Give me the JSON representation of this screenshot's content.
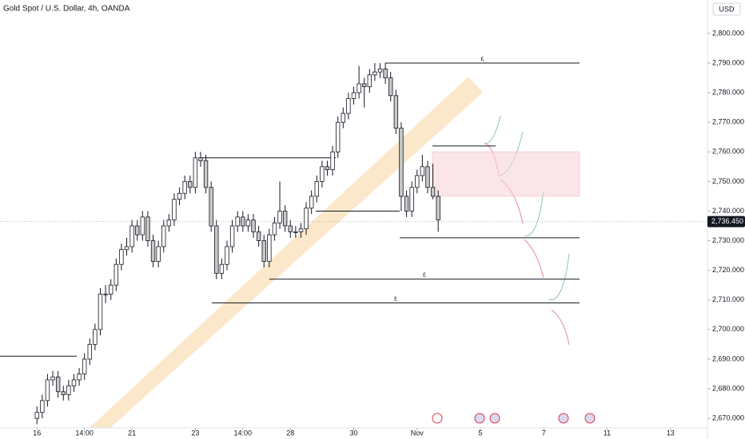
{
  "chart_data": {
    "type": "candlestick",
    "title": "Gold Spot / U.S. Dollar, 4h, OANDA",
    "currency": "USD",
    "candles": [
      [
        2670,
        2674,
        2668,
        2672
      ],
      [
        2672,
        2678,
        2670,
        2676
      ],
      [
        2676,
        2685,
        2674,
        2683
      ],
      [
        2683,
        2686,
        2681,
        2684
      ],
      [
        2684,
        2686,
        2677,
        2679
      ],
      [
        2679,
        2681,
        2676,
        2678
      ],
      [
        2678,
        2683,
        2676,
        2681
      ],
      [
        2681,
        2685,
        2679,
        2683
      ],
      [
        2683,
        2687,
        2681,
        2685
      ],
      [
        2685,
        2692,
        2683,
        2690
      ],
      [
        2690,
        2697,
        2688,
        2695
      ],
      [
        2695,
        2702,
        2693,
        2700
      ],
      [
        2700,
        2714,
        2698,
        2712
      ],
      [
        2712,
        2715,
        2709,
        2712
      ],
      [
        2712,
        2717,
        2710,
        2715
      ],
      [
        2715,
        2724,
        2713,
        2722
      ],
      [
        2722,
        2729,
        2720,
        2727
      ],
      [
        2727,
        2731,
        2725,
        2728
      ],
      [
        2728,
        2737,
        2726,
        2735
      ],
      [
        2735,
        2737,
        2730,
        2732
      ],
      [
        2732,
        2740,
        2730,
        2738
      ],
      [
        2738,
        2740,
        2728,
        2730
      ],
      [
        2730,
        2732,
        2721,
        2723
      ],
      [
        2723,
        2730,
        2721,
        2728
      ],
      [
        2728,
        2737,
        2726,
        2735
      ],
      [
        2735,
        2739,
        2733,
        2737
      ],
      [
        2737,
        2746,
        2735,
        2744
      ],
      [
        2744,
        2748,
        2742,
        2746
      ],
      [
        2746,
        2752,
        2744,
        2750
      ],
      [
        2750,
        2752,
        2746,
        2748
      ],
      [
        2748,
        2760,
        2746,
        2758
      ],
      [
        2758,
        2760,
        2755,
        2757
      ],
      [
        2757,
        2759,
        2746,
        2748
      ],
      [
        2748,
        2750,
        2733,
        2735
      ],
      [
        2735,
        2737,
        2717,
        2719
      ],
      [
        2719,
        2724,
        2717,
        2722
      ],
      [
        2722,
        2730,
        2720,
        2728
      ],
      [
        2728,
        2737,
        2726,
        2735
      ],
      [
        2735,
        2740,
        2733,
        2738
      ],
      [
        2738,
        2740,
        2733,
        2735
      ],
      [
        2735,
        2739,
        2733,
        2737
      ],
      [
        2737,
        2739,
        2731,
        2733
      ],
      [
        2733,
        2735,
        2728,
        2730
      ],
      [
        2730,
        2732,
        2721,
        2723
      ],
      [
        2723,
        2734,
        2721,
        2732
      ],
      [
        2732,
        2738,
        2730,
        2736
      ],
      [
        2736,
        2750,
        2734,
        2740
      ],
      [
        2740,
        2742,
        2733,
        2735
      ],
      [
        2735,
        2737,
        2731,
        2733
      ],
      [
        2733,
        2735,
        2731,
        2733
      ],
      [
        2733,
        2736,
        2731,
        2734
      ],
      [
        2734,
        2743,
        2732,
        2741
      ],
      [
        2741,
        2747,
        2739,
        2745
      ],
      [
        2745,
        2752,
        2743,
        2750
      ],
      [
        2750,
        2757,
        2748,
        2755
      ],
      [
        2755,
        2757,
        2752,
        2754
      ],
      [
        2754,
        2762,
        2752,
        2760
      ],
      [
        2760,
        2772,
        2758,
        2770
      ],
      [
        2770,
        2775,
        2768,
        2773
      ],
      [
        2773,
        2780,
        2771,
        2778
      ],
      [
        2778,
        2782,
        2776,
        2780
      ],
      [
        2780,
        2789,
        2778,
        2783
      ],
      [
        2783,
        2785,
        2775,
        2782
      ],
      [
        2782,
        2788,
        2780,
        2786
      ],
      [
        2786,
        2790,
        2784,
        2787
      ],
      [
        2787,
        2790,
        2785,
        2788
      ],
      [
        2788,
        2790,
        2783,
        2785
      ],
      [
        2785,
        2787,
        2777,
        2779
      ],
      [
        2779,
        2781,
        2766,
        2768
      ],
      [
        2768,
        2770,
        2740,
        2745
      ],
      [
        2745,
        2747,
        2738,
        2740
      ],
      [
        2740,
        2750,
        2738,
        2748
      ],
      [
        2748,
        2754,
        2746,
        2752
      ],
      [
        2752,
        2759,
        2750,
        2755
      ],
      [
        2755,
        2757,
        2746,
        2748
      ],
      [
        2748,
        2756,
        2744,
        2745
      ],
      [
        2745,
        2747,
        2733,
        2737
      ]
    ],
    "xlim": [
      -7,
      127
    ],
    "xticks": [
      {
        "value": 0,
        "label": "16"
      },
      {
        "value": 9,
        "label": "14:00"
      },
      {
        "value": 18,
        "label": "21"
      },
      {
        "value": 30,
        "label": "23"
      },
      {
        "value": 39,
        "label": "14:00"
      },
      {
        "value": 48,
        "label": "28"
      },
      {
        "value": 60,
        "label": "30"
      },
      {
        "value": 72,
        "label": "Nov"
      },
      {
        "value": 84,
        "label": "5"
      },
      {
        "value": 96,
        "label": "7"
      },
      {
        "value": 108,
        "label": "11"
      },
      {
        "value": 120,
        "label": "13"
      }
    ],
    "ylim": [
      2666.8,
      2811.3
    ],
    "yticks": [
      {
        "value": 2670,
        "label": "2,670.000"
      },
      {
        "value": 2680,
        "label": "2,680.000"
      },
      {
        "value": 2690,
        "label": "2,690.000"
      },
      {
        "value": 2700,
        "label": "2,700.000"
      },
      {
        "value": 2710,
        "label": "2,710.000"
      },
      {
        "value": 2720,
        "label": "2,720.000"
      },
      {
        "value": 2730,
        "label": "2,730.000"
      },
      {
        "value": 2740,
        "label": "2,740.000"
      },
      {
        "value": 2750,
        "label": "2,750.000"
      },
      {
        "value": 2760,
        "label": "2,760.000"
      },
      {
        "value": 2770,
        "label": "2,770.000"
      },
      {
        "value": 2780,
        "label": "2,780.000"
      },
      {
        "value": 2790,
        "label": "2,790.000"
      },
      {
        "value": 2800,
        "label": "2,800.000"
      }
    ],
    "levels": [
      2790,
      2762,
      2758,
      2740,
      2731,
      2717,
      2709,
      2691
    ],
    "level_labels": [
      "£",
      null,
      null,
      null,
      null,
      "£",
      "£",
      null
    ],
    "zone": [
      2745,
      2760
    ],
    "last_price": {
      "value": 2736.45,
      "label": "2,736.450"
    },
    "up_color": "#ffffff",
    "down_color": "#c8c8c8",
    "outline_color": "#131722"
  }
}
